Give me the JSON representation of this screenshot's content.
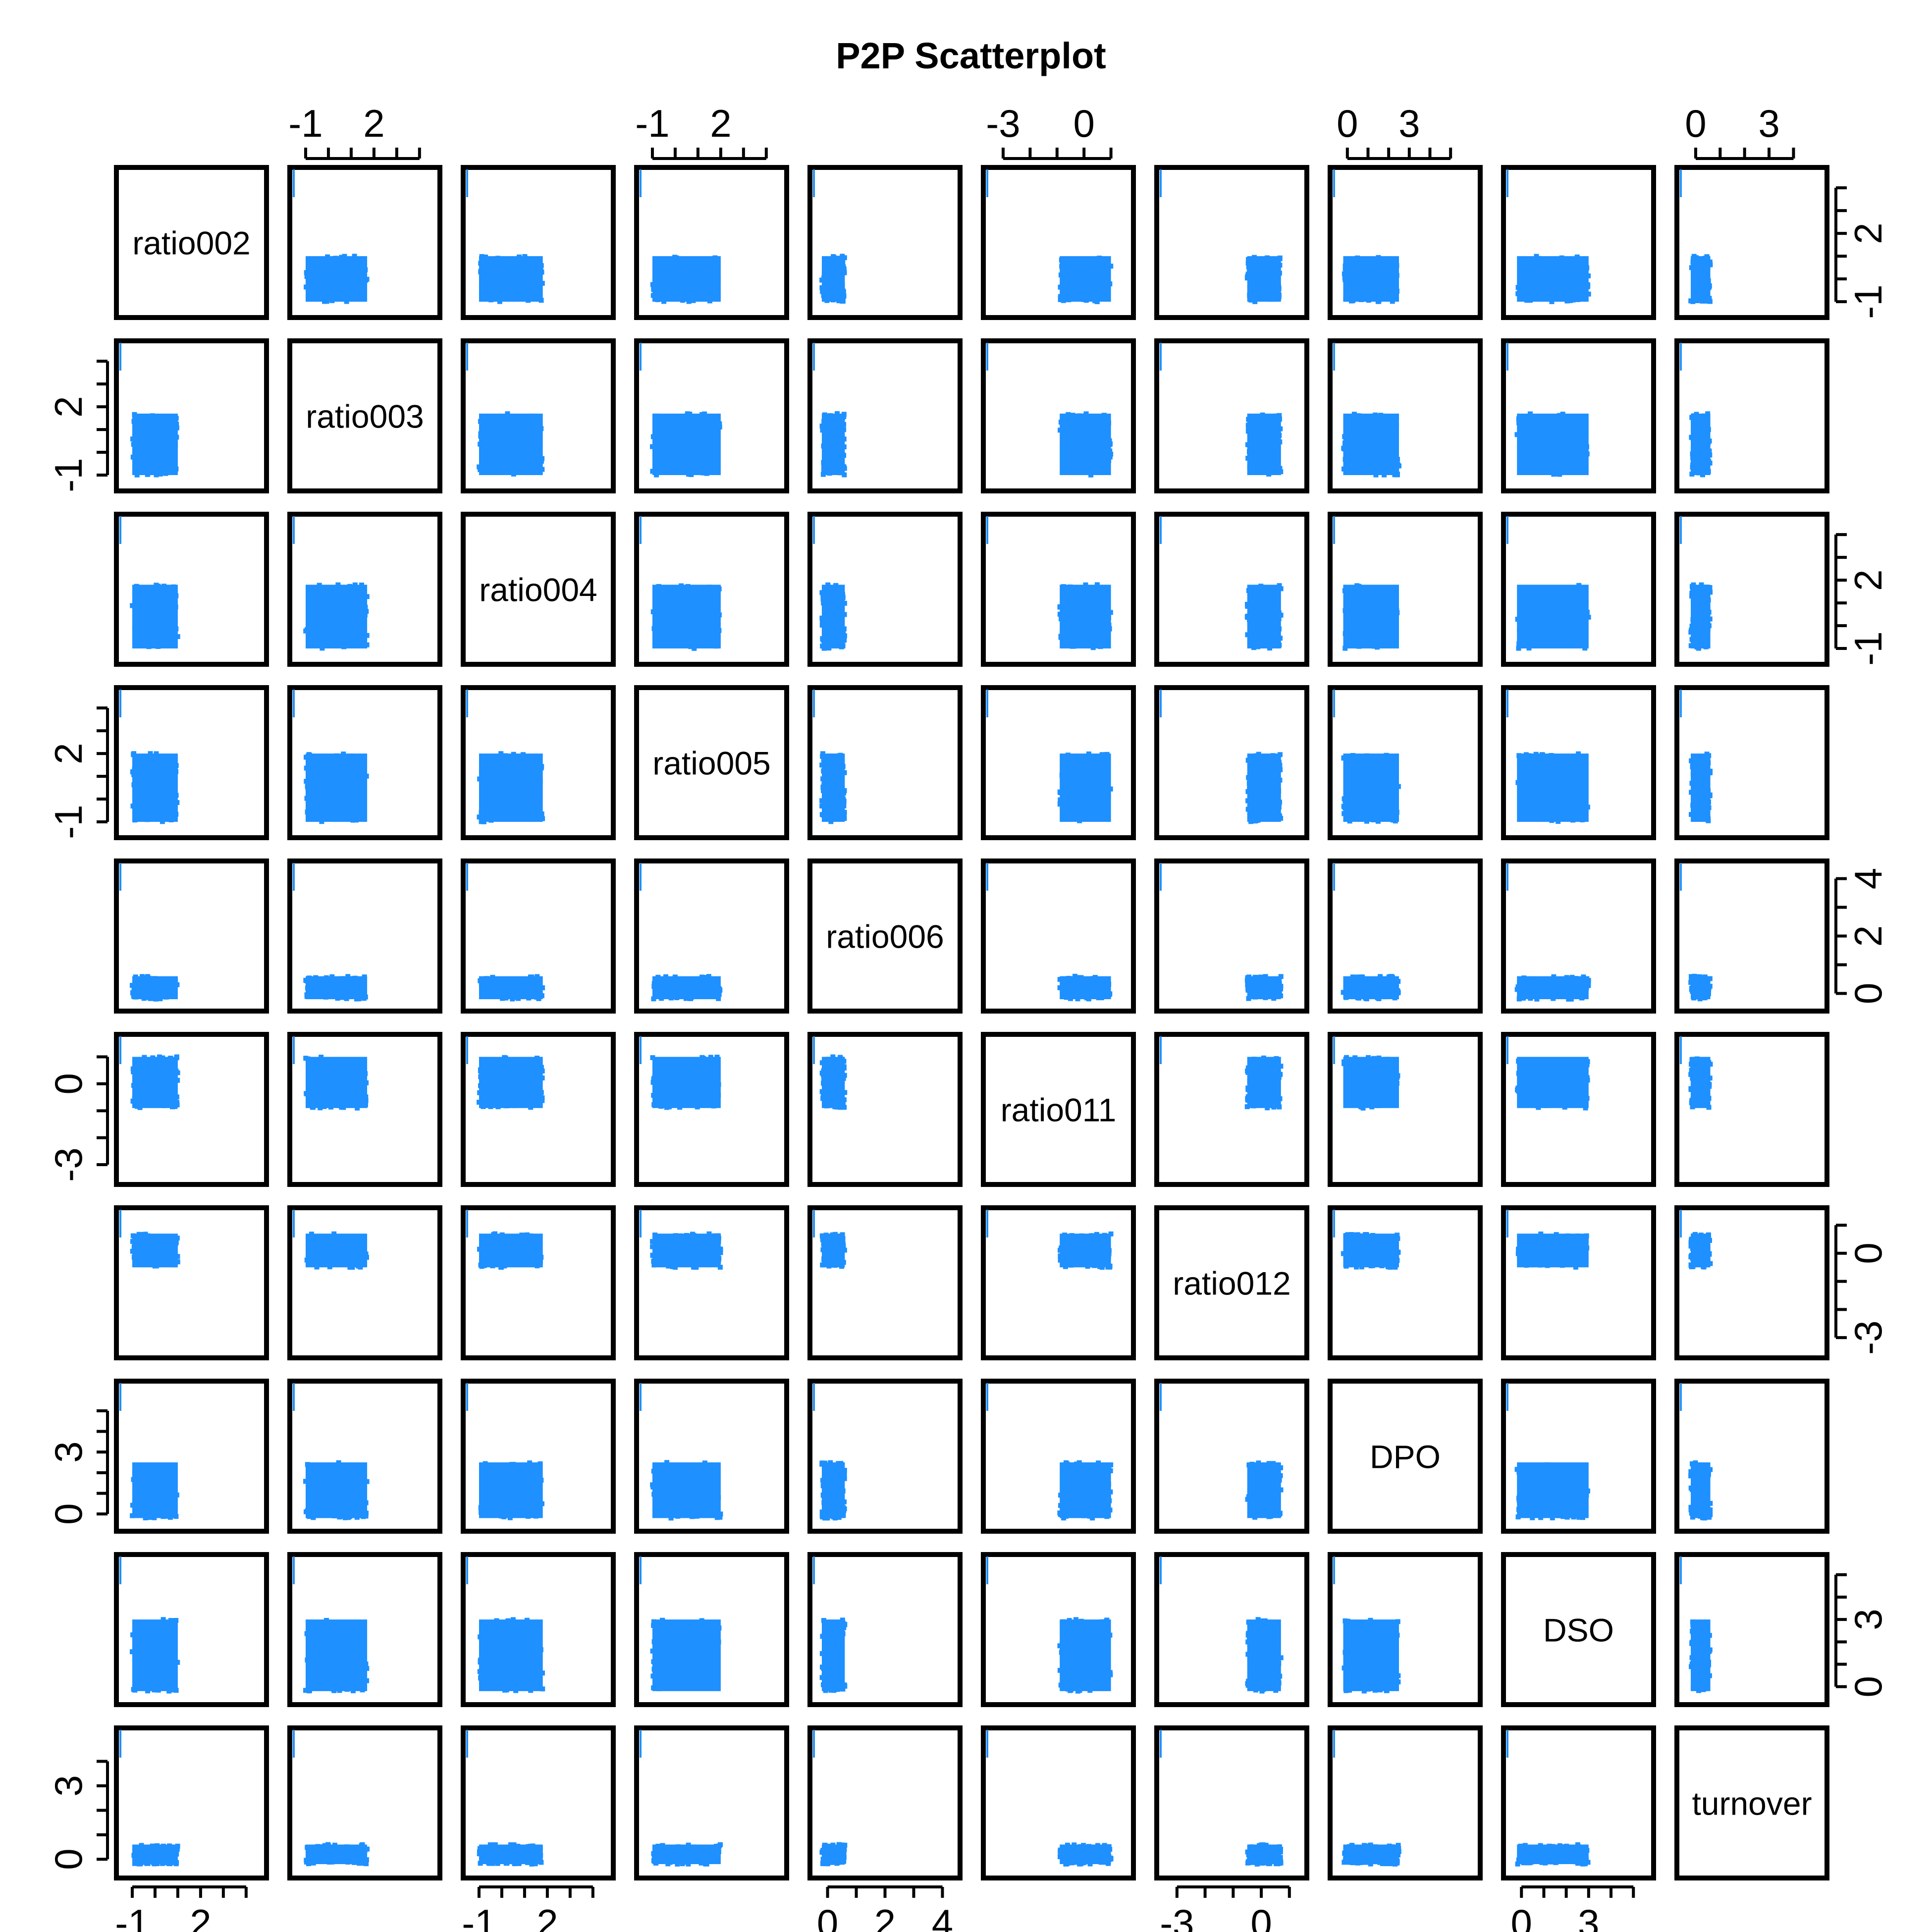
{
  "chart_data": {
    "type": "scatter",
    "title": "P2P Scatterplot",
    "point_color": "#1E90FF",
    "frame_color": "#000000",
    "variables": [
      {
        "name": "ratio002",
        "range": [
          -1.3,
          4.5
        ],
        "ticks": [
          -1,
          0,
          1,
          2,
          3,
          4
        ],
        "tick_labels": [
          "-1",
          "2"
        ],
        "data_range": [
          -1.0,
          1.0
        ]
      },
      {
        "name": "ratio003",
        "range": [
          -1.3,
          4.5
        ],
        "ticks": [
          -1,
          0,
          1,
          2,
          3,
          4
        ],
        "tick_labels": [
          "-1",
          "2"
        ],
        "data_range": [
          -1.0,
          1.7
        ]
      },
      {
        "name": "ratio004",
        "range": [
          -1.3,
          4.5
        ],
        "ticks": [
          -1,
          0,
          1,
          2,
          3,
          4
        ],
        "tick_labels": [
          "-1",
          "2"
        ],
        "data_range": [
          -1.0,
          1.8
        ]
      },
      {
        "name": "ratio005",
        "range": [
          -1.3,
          4.5
        ],
        "ticks": [
          -1,
          0,
          1,
          2,
          3,
          4
        ],
        "tick_labels": [
          "-1",
          "2"
        ],
        "data_range": [
          -1.0,
          2.0
        ]
      },
      {
        "name": "ratio006",
        "range": [
          -0.3,
          4.3
        ],
        "ticks": [
          0,
          1,
          2,
          3,
          4
        ],
        "tick_labels": [
          "0",
          "2",
          "4"
        ],
        "data_range": [
          -0.2,
          0.6
        ]
      },
      {
        "name": "ratio011",
        "range": [
          -3.4,
          1.5
        ],
        "ticks": [
          -3,
          -2,
          -1,
          0,
          1
        ],
        "tick_labels": [
          "-3",
          "0"
        ],
        "data_range": [
          -0.9,
          1.0
        ]
      },
      {
        "name": "ratio012",
        "range": [
          -3.4,
          1.3
        ],
        "ticks": [
          -3,
          -2,
          -1,
          0,
          1
        ],
        "tick_labels": [
          "-3",
          "0"
        ],
        "data_range": [
          -0.5,
          0.7
        ]
      },
      {
        "name": "DPO",
        "range": [
          -0.4,
          6.0
        ],
        "ticks": [
          0,
          1,
          2,
          3,
          4,
          5
        ],
        "tick_labels": [
          "0",
          "3"
        ],
        "data_range": [
          -0.2,
          2.5
        ]
      },
      {
        "name": "DSO",
        "range": [
          -0.4,
          5.5
        ],
        "ticks": [
          0,
          1,
          2,
          3,
          4,
          5
        ],
        "tick_labels": [
          "0",
          "3"
        ],
        "data_range": [
          -0.2,
          3.0
        ]
      },
      {
        "name": "turnover",
        "range": [
          -0.4,
          5.0
        ],
        "ticks": [
          0,
          1,
          2,
          3,
          4
        ],
        "tick_labels": [
          "0",
          "3"
        ],
        "data_range": [
          -0.2,
          0.6
        ]
      }
    ]
  }
}
